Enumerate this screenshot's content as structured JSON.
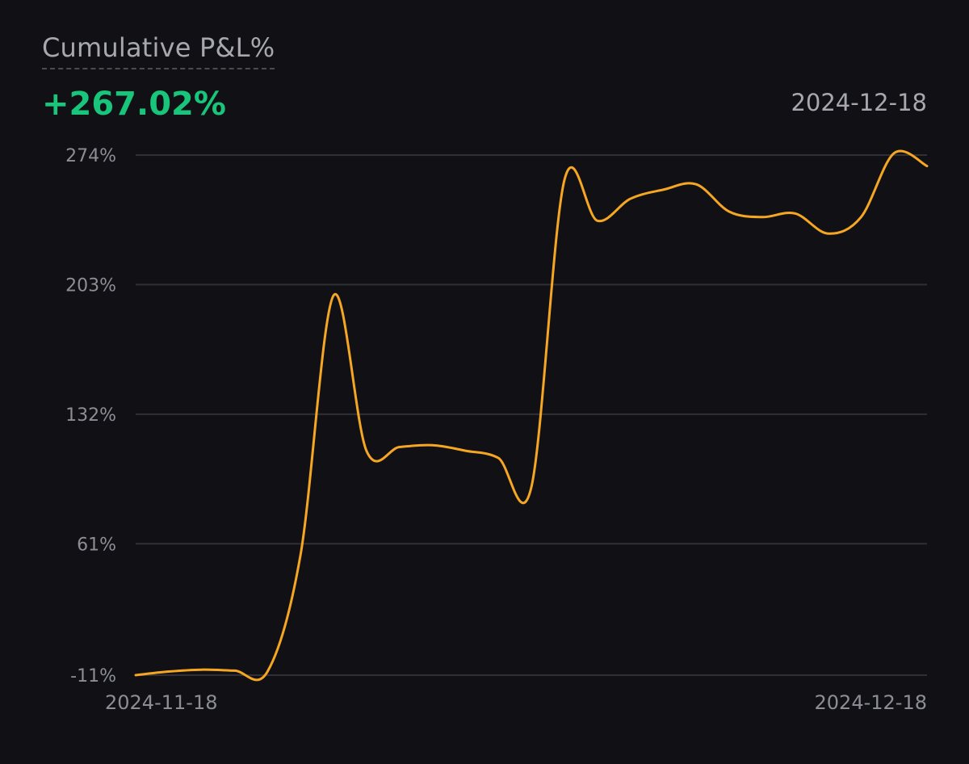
{
  "header": {
    "title": "Cumulative P&L%",
    "value": "+267.02%",
    "date": "2024-12-18"
  },
  "colors": {
    "background": "#111115",
    "line": "#f5a623",
    "positive": "#19c57a",
    "grid": "#2e3036",
    "text": "#a6a8ae"
  },
  "chart_data": {
    "type": "line",
    "title": "Cumulative P&L%",
    "xlabel": "",
    "ylabel": "",
    "x_tick_labels": [
      "2024-11-18",
      "2024-12-18"
    ],
    "y_ticks": [
      -11,
      61,
      132,
      203,
      274
    ],
    "y_tick_labels": [
      "-11%",
      "61%",
      "132%",
      "203%",
      "274%"
    ],
    "ylim": [
      -11,
      274
    ],
    "grid": "horizontal",
    "series": [
      {
        "values": [
          -11,
          -9,
          -8,
          -8.5,
          -9,
          55,
          197,
          112,
          114,
          115,
          112,
          108,
          92,
          260,
          238,
          250,
          255,
          258,
          243,
          240,
          242,
          231,
          240,
          275,
          268
        ]
      }
    ]
  }
}
